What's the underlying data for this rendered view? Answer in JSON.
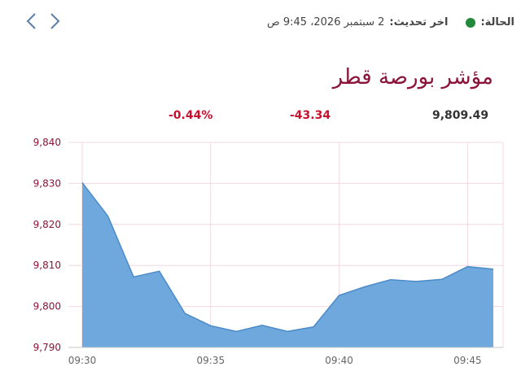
{
  "status": {
    "label": "الحالة:",
    "last_update_label": "اخر تحديث:",
    "last_update_value": "2 سبتمبر 2026، 9:45 ص",
    "dot_color": "#1e8a3a"
  },
  "nav": {
    "prev_icon": "chevron-left-icon",
    "next_icon": "chevron-right-icon"
  },
  "title": "مؤشر بورصة قطر",
  "stats": {
    "value": "9,809.49",
    "change": "-43.34",
    "change_pct": "-0.44%"
  },
  "colors": {
    "area_fill": "#6fa8dc",
    "area_stroke": "#4a8bc8",
    "negative": "#c8102e",
    "brand": "#8a1538",
    "grid": "#f3d8df"
  },
  "chart_data": {
    "type": "area",
    "x": [
      "09:30",
      "09:31",
      "09:32",
      "09:33",
      "09:34",
      "09:35",
      "09:36",
      "09:37",
      "09:38",
      "09:39",
      "09:40",
      "09:41",
      "09:42",
      "09:43",
      "09:44",
      "09:45",
      "09:46"
    ],
    "values": [
      9830.2,
      9822.0,
      9807.2,
      9808.6,
      9798.3,
      9795.3,
      9793.9,
      9795.4,
      9793.9,
      9795.0,
      9802.7,
      9804.8,
      9806.5,
      9806.1,
      9806.6,
      9809.7,
      9809.1
    ],
    "ylim": [
      9790,
      9840
    ],
    "y_ticks": [
      "9,790",
      "9,800",
      "9,810",
      "9,820",
      "9,830",
      "9,840"
    ],
    "x_ticks": [
      "09:30",
      "09:35",
      "09:40",
      "09:45"
    ],
    "grid": true
  }
}
